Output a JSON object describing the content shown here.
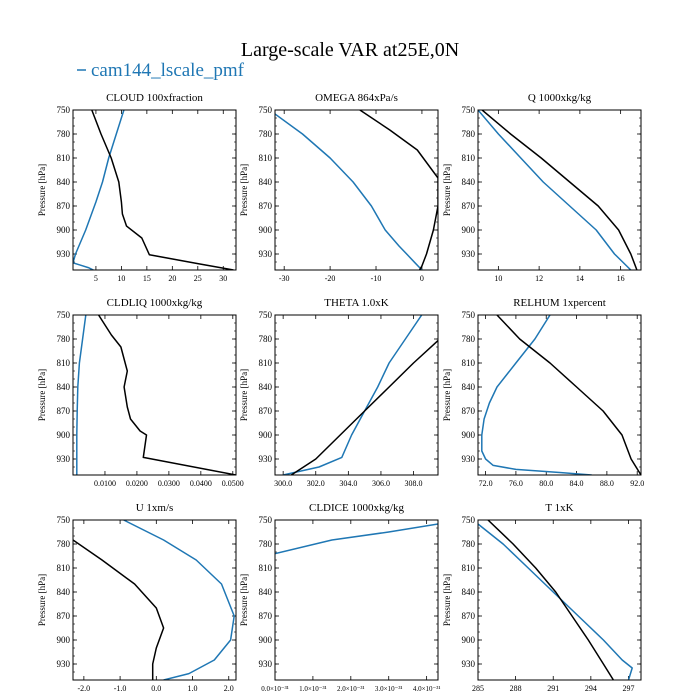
{
  "figure": {
    "title": "Large-scale VAR at25E,0N",
    "legend": {
      "label": "cam144_lscale_pmf",
      "placement": "top-left"
    }
  },
  "colors": {
    "series_main": "#1f77b4",
    "series_ref": "#000000"
  },
  "chart_data": [
    {
      "type": "line",
      "title": "CLOUD  100xfraction",
      "ylabel": "Pressure [hPa]",
      "xlim": [
        0.5,
        32.5
      ],
      "ylim": [
        750,
        950
      ],
      "xticks": [
        5,
        10,
        15,
        20,
        25,
        30
      ],
      "xticklabels": [
        "5",
        "10",
        "15",
        "20",
        "25",
        "30"
      ],
      "yticks": [
        750,
        780,
        810,
        840,
        870,
        900,
        930
      ],
      "series": [
        {
          "name": "cam144_lscale_pmf",
          "color": "#1f77b4",
          "x": [
            10.5,
            9,
            7.5,
            6.3,
            5,
            3,
            1,
            0.5,
            2,
            3.5,
            4.5
          ],
          "y": [
            750,
            780,
            810,
            840,
            865,
            900,
            930,
            941,
            944,
            947,
            950
          ]
        },
        {
          "color": "#000000",
          "x": [
            4.2,
            6,
            8,
            9.5,
            10,
            10.2,
            11,
            14,
            15.5,
            25,
            32
          ],
          "y": [
            750,
            780,
            810,
            840,
            865,
            880,
            895,
            910,
            931,
            942,
            950
          ]
        }
      ]
    },
    {
      "type": "line",
      "title": "OMEGA  864xPa/s",
      "ylabel": "Pressure [hPa]",
      "xlim": [
        -32,
        3.5
      ],
      "ylim": [
        750,
        950
      ],
      "xticks": [
        -30,
        -20,
        -10,
        0
      ],
      "xticklabels": [
        "-30",
        "-20",
        "-10",
        "0"
      ],
      "yticks": [
        750,
        780,
        810,
        840,
        870,
        900,
        930
      ],
      "series": [
        {
          "name": "cam144_lscale_pmf",
          "color": "#1f77b4",
          "x": [
            -32,
            -26,
            -20,
            -15,
            -11,
            -8,
            -5,
            -3,
            -1.5,
            -0.5,
            0
          ],
          "y": [
            755,
            780,
            810,
            840,
            870,
            900,
            920,
            932,
            941,
            947,
            950
          ]
        },
        {
          "color": "#000000",
          "x": [
            -13.5,
            -7,
            -1,
            3.5,
            3.5,
            2.5,
            1,
            0,
            -0.5
          ],
          "y": [
            750,
            775,
            800,
            835,
            870,
            900,
            930,
            945,
            950
          ]
        }
      ]
    },
    {
      "type": "line",
      "title": "Q  1000xkg/kg",
      "ylabel": "Pressure [hPa]",
      "xlim": [
        9,
        17
      ],
      "ylim": [
        750,
        950
      ],
      "xticks": [
        10,
        12,
        14,
        16
      ],
      "xticklabels": [
        "10",
        "12",
        "14",
        "16"
      ],
      "yticks": [
        750,
        780,
        810,
        840,
        870,
        900,
        930
      ],
      "series": [
        {
          "name": "cam144_lscale_pmf",
          "color": "#1f77b4",
          "x": [
            9,
            10,
            11.1,
            12.2,
            13.5,
            14.8,
            15.7,
            16.5
          ],
          "y": [
            750,
            780,
            810,
            840,
            870,
            900,
            930,
            950
          ]
        },
        {
          "color": "#000000",
          "x": [
            9.2,
            10.6,
            12.1,
            13.5,
            14.9,
            15.9,
            16.5,
            16.8
          ],
          "y": [
            750,
            780,
            810,
            840,
            870,
            900,
            930,
            950
          ]
        }
      ]
    },
    {
      "type": "line",
      "title": "CLDLIQ  1000xkg/kg",
      "ylabel": "Pressure [hPa]",
      "xlim": [
        0,
        0.051
      ],
      "ylim": [
        750,
        950
      ],
      "xticks": [
        0.01,
        0.02,
        0.03,
        0.04,
        0.05
      ],
      "xticklabels": [
        "0.0100",
        "0.0200",
        "0.0300",
        "0.0400",
        "0.0500"
      ],
      "yticks": [
        750,
        780,
        810,
        840,
        870,
        900,
        930
      ],
      "series": [
        {
          "name": "cam144_lscale_pmf",
          "color": "#1f77b4",
          "x": [
            0.004,
            0.003,
            0.002,
            0.0015,
            0.0013,
            0.0012,
            0.0012,
            0.0012
          ],
          "y": [
            750,
            780,
            810,
            840,
            870,
            900,
            930,
            950
          ]
        },
        {
          "color": "#000000",
          "x": [
            0.008,
            0.012,
            0.015,
            0.017,
            0.016,
            0.017,
            0.018,
            0.021,
            0.023,
            0.022,
            0.051
          ],
          "y": [
            750,
            775,
            790,
            820,
            840,
            865,
            880,
            895,
            900,
            928,
            950
          ]
        }
      ]
    },
    {
      "type": "line",
      "title": "THETA  1.0xK",
      "ylabel": "Pressure [hPa]",
      "xlim": [
        299.5,
        309.5
      ],
      "ylim": [
        750,
        950
      ],
      "xticks": [
        300,
        302,
        304,
        306,
        308
      ],
      "xticklabels": [
        "300.0",
        "302.0",
        "304.0",
        "306.0",
        "308.0"
      ],
      "yticks": [
        750,
        780,
        810,
        840,
        870,
        900,
        930
      ],
      "series": [
        {
          "name": "cam144_lscale_pmf",
          "color": "#1f77b4",
          "x": [
            308.5,
            307.5,
            306.5,
            305.8,
            305,
            304.2,
            303.6,
            302.2,
            300
          ],
          "y": [
            750,
            780,
            810,
            840,
            870,
            900,
            928,
            940,
            950
          ]
        },
        {
          "color": "#000000",
          "x": [
            309.5,
            308,
            306.5,
            305,
            303.5,
            302,
            300.5
          ],
          "y": [
            782,
            810,
            840,
            870,
            900,
            930,
            950
          ]
        }
      ]
    },
    {
      "type": "line",
      "title": "RELHUM  1xpercent",
      "ylabel": "Pressure [hPa]",
      "xlim": [
        71,
        92.5
      ],
      "ylim": [
        750,
        950
      ],
      "xticks": [
        72,
        76,
        80,
        84,
        88,
        92
      ],
      "xticklabels": [
        "72.0",
        "76.0",
        "80.0",
        "84.0",
        "88.0",
        "92.0"
      ],
      "yticks": [
        750,
        780,
        810,
        840,
        870,
        900,
        930
      ],
      "series": [
        {
          "name": "cam144_lscale_pmf",
          "color": "#1f77b4",
          "x": [
            80.5,
            78.5,
            76,
            73.5,
            72.5,
            71.8,
            71.5,
            71.5,
            72,
            73,
            76,
            82,
            86
          ],
          "y": [
            750,
            780,
            810,
            840,
            860,
            880,
            900,
            920,
            930,
            938,
            943,
            947,
            950
          ]
        },
        {
          "color": "#000000",
          "x": [
            73.5,
            76.5,
            80.5,
            84,
            87.5,
            90,
            91.2,
            92.5
          ],
          "y": [
            750,
            780,
            810,
            840,
            870,
            900,
            930,
            950
          ]
        }
      ]
    },
    {
      "type": "line",
      "title": "U  1xm/s",
      "ylabel": "Pressure [hPa]",
      "xlim": [
        -2.3,
        2.2
      ],
      "ylim": [
        750,
        950
      ],
      "xticks": [
        -2,
        -1,
        0,
        1,
        2
      ],
      "xticklabels": [
        "-2.0",
        "-1.0",
        "0.0",
        "1.0",
        "2.0"
      ],
      "yticks": [
        750,
        780,
        810,
        840,
        870,
        900,
        930
      ],
      "series": [
        {
          "name": "cam144_lscale_pmf",
          "color": "#1f77b4",
          "x": [
            -0.9,
            0.2,
            1.1,
            1.8,
            2.15,
            2.05,
            1.6,
            0.9,
            0.2
          ],
          "y": [
            750,
            775,
            800,
            830,
            870,
            900,
            925,
            942,
            950
          ]
        },
        {
          "color": "#000000",
          "x": [
            -2.3,
            -1.5,
            -0.6,
            0,
            0.2,
            0,
            -0.1,
            -0.1
          ],
          "y": [
            775,
            800,
            830,
            860,
            885,
            910,
            930,
            950
          ]
        }
      ]
    },
    {
      "type": "line",
      "title": "CLDICE  1000xkg/kg",
      "ylabel": "Pressure [hPa]",
      "xlim": [
        0,
        4.3e-31
      ],
      "ylim": [
        750,
        950
      ],
      "xticks": [
        0,
        1e-31,
        2e-31,
        3e-31,
        4e-31
      ],
      "xticklabels": [
        "0.0×10⁻³¹",
        "1.0×10⁻³¹",
        "2.0×10⁻³¹",
        "3.0×10⁻³¹",
        "4.0×10⁻³¹"
      ],
      "yticks": [
        750,
        780,
        810,
        840,
        870,
        900,
        930
      ],
      "series": [
        {
          "name": "cam144_lscale_pmf",
          "color": "#1f77b4",
          "x": [
            4.3e-31,
            3e-31,
            1.5e-31,
            0
          ],
          "y": [
            755,
            765,
            775,
            792
          ]
        }
      ]
    },
    {
      "type": "line",
      "title": "T  1xK",
      "ylabel": "Pressure [hPa]",
      "xlim": [
        285,
        298
      ],
      "ylim": [
        750,
        950
      ],
      "xticks": [
        285,
        288,
        291,
        294,
        297
      ],
      "xticklabels": [
        "285",
        "288",
        "291",
        "294",
        "297"
      ],
      "yticks": [
        750,
        780,
        810,
        840,
        870,
        900,
        930
      ],
      "series": [
        {
          "name": "cam144_lscale_pmf",
          "color": "#1f77b4",
          "x": [
            285,
            287,
            289,
            291,
            293,
            295,
            296.5,
            297.3,
            297
          ],
          "y": [
            755,
            780,
            810,
            840,
            870,
            900,
            925,
            935,
            950
          ]
        },
        {
          "color": "#000000",
          "x": [
            285.8,
            287.8,
            289.6,
            291.2,
            292.5,
            293.8,
            295,
            295.8
          ],
          "y": [
            750,
            780,
            810,
            840,
            870,
            900,
            930,
            950
          ]
        }
      ]
    }
  ]
}
